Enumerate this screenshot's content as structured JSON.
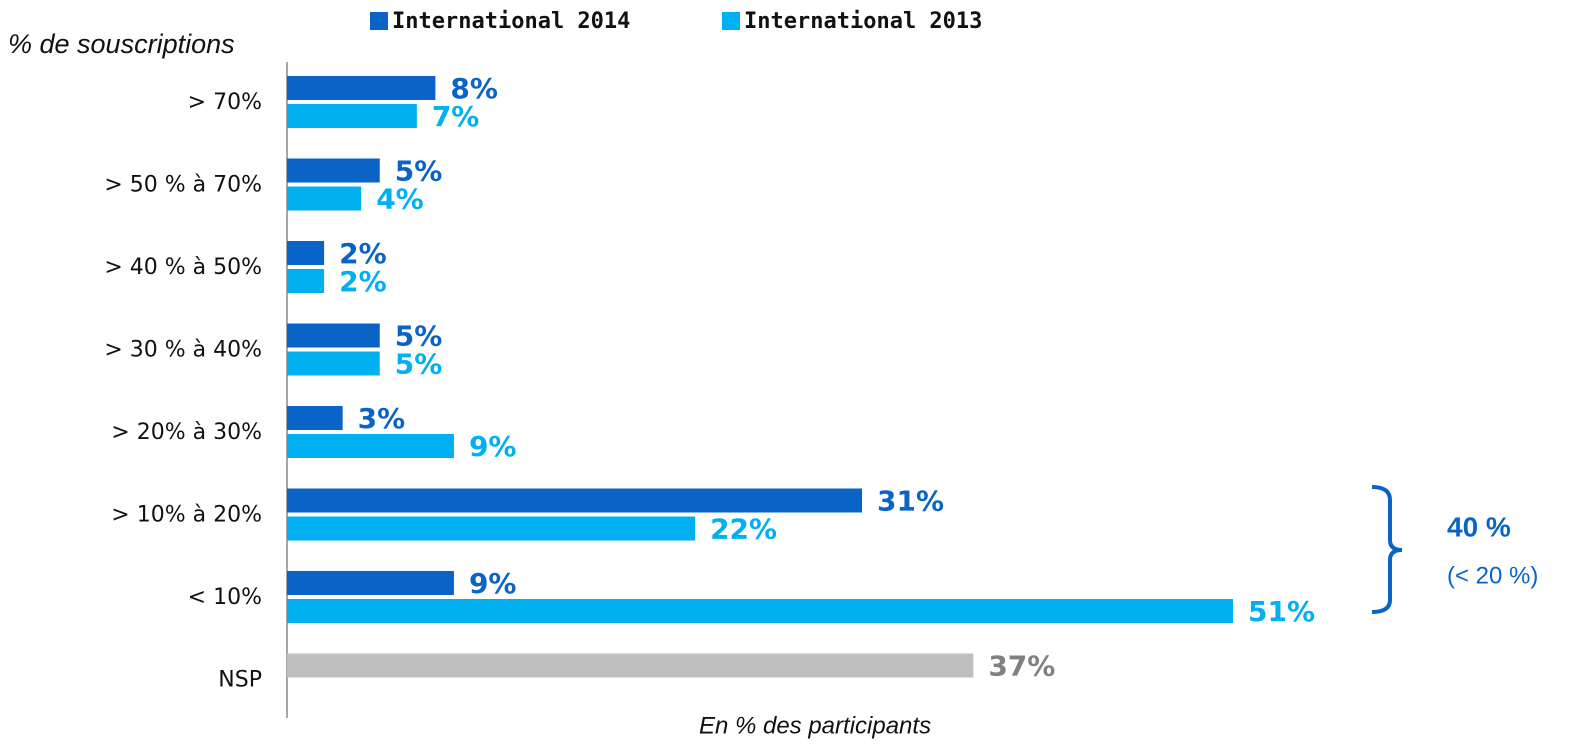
{
  "chart_data": {
    "type": "hbar",
    "y_axis_label": "% de souscriptions",
    "x_axis_label": "En % des participants",
    "categories": [
      "> 70%",
      "> 50 % à 70%",
      "> 40 % à 50%",
      "> 30 % à 40%",
      "> 20% à 30%",
      "> 10% à 20%",
      "< 10%",
      "NSP"
    ],
    "series": [
      {
        "name": "International 2014",
        "color": "#0a64c8",
        "values": [
          8,
          5,
          2,
          5,
          3,
          31,
          9,
          null
        ],
        "value_labels": [
          "8%",
          "5%",
          "2%",
          "5%",
          "3%",
          "31%",
          "9%",
          null
        ]
      },
      {
        "name": "International 2013",
        "color": "#00b0f0",
        "values": [
          7,
          4,
          2,
          5,
          9,
          22,
          51,
          null
        ],
        "value_labels": [
          "7%",
          "4%",
          "2%",
          "5%",
          "9%",
          "22%",
          "51%",
          null
        ]
      }
    ],
    "nsp": {
      "value": 37,
      "value_label": "37%",
      "color": "#bfbfbf",
      "label_color": "#808080"
    },
    "annotations": [
      "40 %",
      "(< 20 %)"
    ],
    "legend": "top"
  }
}
